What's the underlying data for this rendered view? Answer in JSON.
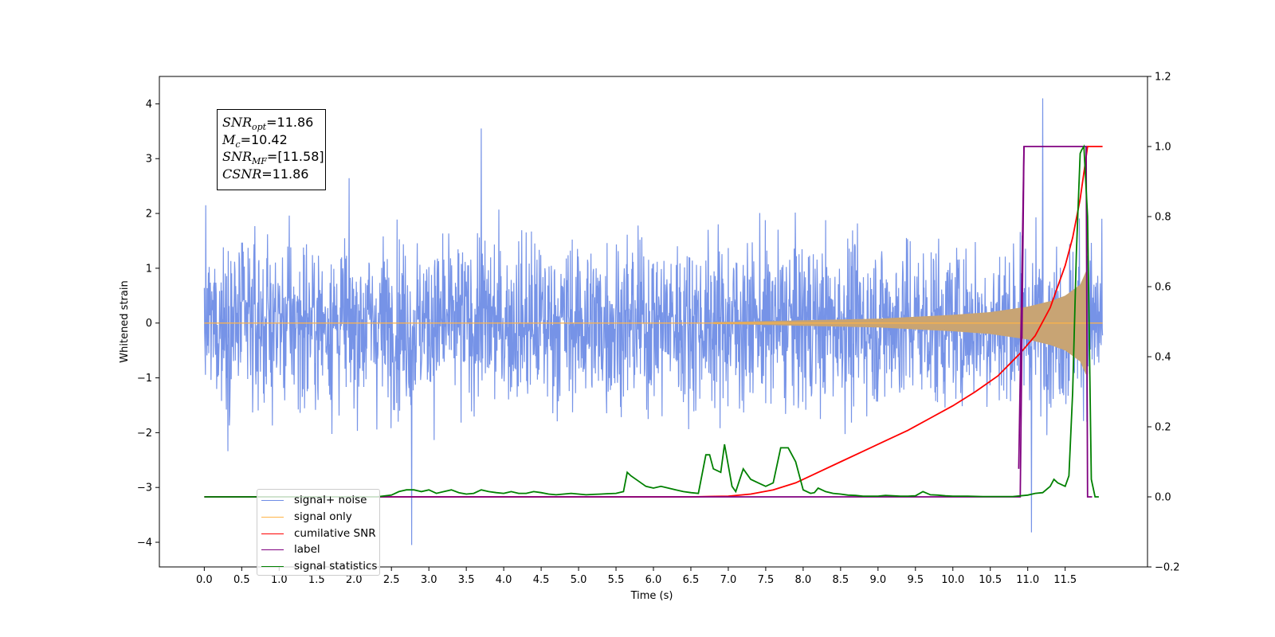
{
  "chart_data": {
    "type": "line",
    "xlabel": "Time (s)",
    "ylabel": "Whitened strain",
    "xlim": [
      -0.6,
      12.6
    ],
    "ylim": [
      -4.45,
      4.5
    ],
    "y2lim": [
      -0.2,
      1.2
    ],
    "x_ticks": [
      0.0,
      0.5,
      1.0,
      1.5,
      2.0,
      2.5,
      3.0,
      3.5,
      4.0,
      4.5,
      5.0,
      5.5,
      6.0,
      6.5,
      7.0,
      7.5,
      8.0,
      8.5,
      9.0,
      9.5,
      10.0,
      10.5,
      11.0,
      11.5
    ],
    "x_tick_labels": [
      "0.0",
      "0.5",
      "1.0",
      "1.5",
      "2.0",
      "2.5",
      "3.0",
      "3.5",
      "4.0",
      "4.5",
      "5.0",
      "5.5",
      "6.0",
      "6.5",
      "7.0",
      "7.5",
      "8.0",
      "8.5",
      "9.0",
      "9.5",
      "10.0",
      "10.5",
      "11.0",
      "11.5"
    ],
    "y_ticks": [
      -4,
      -3,
      -2,
      -1,
      0,
      1,
      2,
      3,
      4
    ],
    "y_tick_labels": [
      "−4",
      "−3",
      "−2",
      "−1",
      "0",
      "1",
      "2",
      "3",
      "4"
    ],
    "y2_ticks": [
      -0.2,
      0.0,
      0.2,
      0.4,
      0.6,
      0.8,
      1.0,
      1.2
    ],
    "y2_tick_labels": [
      "−0.2",
      "0.0",
      "0.2",
      "0.4",
      "0.6",
      "0.8",
      "1.0",
      "1.2"
    ],
    "grid": false,
    "legend_position": "lower-left",
    "colors": {
      "signal_noise": "#6f8de6",
      "signal_only": "#ffb347",
      "signal_only_fill": "#c8a474",
      "cumulative_snr": "#ff0000",
      "label": "#800080",
      "signal_statistics": "#008000"
    },
    "series": [
      {
        "name": "signal+ noise",
        "axis": "left",
        "description_range": [
          0.0,
          12.0
        ],
        "typical_envelope": [
          -2.5,
          2.5
        ],
        "extremes": [
          {
            "x": 2.77,
            "y": -4.05
          },
          {
            "x": 3.7,
            "y": 3.55
          },
          {
            "x": 11.05,
            "y": -3.82
          },
          {
            "x": 11.2,
            "y": 4.1
          }
        ]
      },
      {
        "name": "signal only",
        "axis": "left",
        "description_range": [
          0.0,
          12.0
        ],
        "envelope": [
          [
            0.0,
            0.0
          ],
          [
            7.0,
            0.02
          ],
          [
            8.0,
            0.05
          ],
          [
            9.0,
            0.08
          ],
          [
            10.0,
            0.15
          ],
          [
            10.5,
            0.2
          ],
          [
            11.0,
            0.3
          ],
          [
            11.3,
            0.4
          ],
          [
            11.5,
            0.5
          ],
          [
            11.7,
            0.7
          ],
          [
            11.78,
            0.95
          ]
        ],
        "merger_time": 11.8
      },
      {
        "name": "cumilative SNR",
        "axis": "right",
        "x": [
          0.0,
          6.5,
          7.0,
          7.3,
          7.6,
          7.9,
          8.2,
          8.5,
          8.8,
          9.1,
          9.4,
          9.7,
          10.0,
          10.3,
          10.6,
          10.9,
          11.1,
          11.3,
          11.5,
          11.6,
          11.7,
          11.76,
          11.8,
          12.0
        ],
        "y": [
          0.0,
          0.0,
          0.002,
          0.008,
          0.02,
          0.04,
          0.07,
          0.1,
          0.13,
          0.16,
          0.19,
          0.225,
          0.26,
          0.3,
          0.345,
          0.41,
          0.46,
          0.54,
          0.66,
          0.74,
          0.85,
          0.94,
          1.0,
          1.0
        ]
      },
      {
        "name": "label",
        "axis": "right",
        "x": [
          0.0,
          10.9,
          10.95,
          11.78,
          11.8,
          11.86
        ],
        "y": [
          0.0,
          0.0,
          1.0,
          1.0,
          0.0,
          0.0
        ],
        "note": "second curve shown from 10.88 to 11.86: steps from 0.1 up to 1.0 at 10.9, back down at 11.78"
      },
      {
        "name": "signal statistics",
        "axis": "right",
        "x": [
          0.0,
          2.3,
          2.5,
          2.6,
          2.7,
          2.8,
          2.9,
          3.0,
          3.1,
          3.2,
          3.3,
          3.4,
          3.5,
          3.6,
          3.7,
          3.8,
          3.9,
          4.0,
          4.1,
          4.2,
          4.3,
          4.4,
          4.5,
          4.6,
          4.7,
          4.8,
          4.9,
          5.0,
          5.1,
          5.2,
          5.3,
          5.4,
          5.5,
          5.6,
          5.65,
          5.7,
          5.8,
          5.9,
          6.0,
          6.1,
          6.2,
          6.3,
          6.4,
          6.5,
          6.6,
          6.7,
          6.75,
          6.8,
          6.9,
          6.95,
          7.0,
          7.05,
          7.1,
          7.2,
          7.3,
          7.4,
          7.5,
          7.6,
          7.7,
          7.8,
          7.9,
          8.0,
          8.1,
          8.15,
          8.2,
          8.3,
          8.4,
          8.5,
          8.6,
          8.7,
          8.8,
          8.9,
          9.0,
          9.1,
          9.2,
          9.3,
          9.4,
          9.5,
          9.6,
          9.7,
          9.8,
          9.9,
          10.0,
          10.2,
          10.4,
          10.6,
          10.8,
          11.0,
          11.1,
          11.2,
          11.3,
          11.35,
          11.4,
          11.5,
          11.55,
          11.6,
          11.65,
          11.7,
          11.72,
          11.75,
          11.8,
          11.85,
          11.9,
          11.95
        ],
        "y": [
          0.0,
          0.0,
          0.005,
          0.015,
          0.02,
          0.02,
          0.015,
          0.02,
          0.01,
          0.015,
          0.02,
          0.012,
          0.008,
          0.01,
          0.02,
          0.015,
          0.012,
          0.01,
          0.015,
          0.01,
          0.01,
          0.015,
          0.012,
          0.008,
          0.006,
          0.008,
          0.01,
          0.008,
          0.006,
          0.007,
          0.008,
          0.009,
          0.01,
          0.015,
          0.07,
          0.06,
          0.045,
          0.03,
          0.025,
          0.03,
          0.025,
          0.02,
          0.015,
          0.012,
          0.01,
          0.12,
          0.12,
          0.08,
          0.07,
          0.15,
          0.09,
          0.03,
          0.015,
          0.08,
          0.05,
          0.04,
          0.03,
          0.04,
          0.14,
          0.14,
          0.1,
          0.02,
          0.01,
          0.012,
          0.025,
          0.015,
          0.01,
          0.008,
          0.005,
          0.004,
          0.002,
          0.002,
          0.002,
          0.004,
          0.003,
          0.002,
          0.002,
          0.003,
          0.015,
          0.006,
          0.005,
          0.003,
          0.002,
          0.002,
          0.001,
          0.001,
          0.001,
          0.005,
          0.01,
          0.012,
          0.03,
          0.05,
          0.04,
          0.03,
          0.06,
          0.3,
          0.7,
          0.98,
          0.99,
          1.0,
          0.8,
          0.05,
          0.0,
          0.0
        ]
      }
    ]
  },
  "info_box": {
    "snr_opt_base": "SNR",
    "snr_opt_sub": "opt",
    "snr_opt_value": "=11.86",
    "mc_base": "M",
    "mc_sub": "c",
    "mc_value": "=10.42",
    "snr_mf_base": "SNR",
    "snr_mf_sub": "MF",
    "snr_mf_value": "=[11.58]",
    "csnr_base": "CSNR",
    "csnr_value": "=11.86"
  },
  "legend": {
    "entries": [
      {
        "label": "signal+ noise",
        "color": "#6f8de6"
      },
      {
        "label": "signal only",
        "color": "#ffb347"
      },
      {
        "label": "cumilative SNR",
        "color": "#ff0000"
      },
      {
        "label": "label",
        "color": "#800080"
      },
      {
        "label": "signal statistics",
        "color": "#008000"
      }
    ]
  }
}
